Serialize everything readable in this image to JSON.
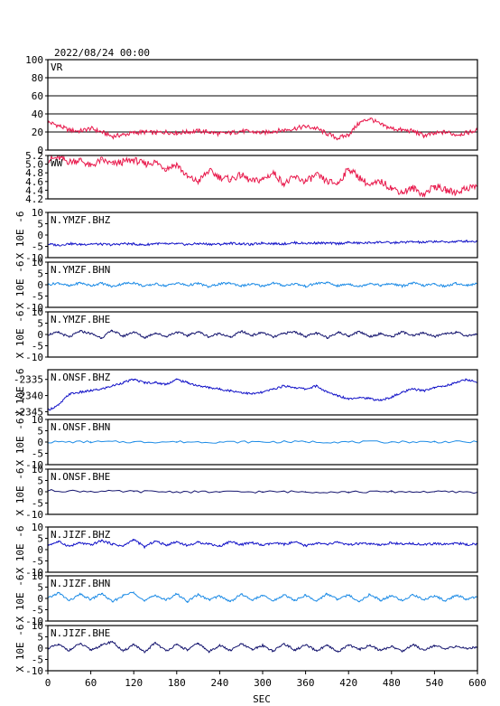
{
  "header": {
    "timestamp": "2022/08/24 00:00"
  },
  "x_axis": {
    "label": "SEC",
    "range": [
      0,
      600
    ],
    "ticks": [
      "0",
      "60",
      "120",
      "180",
      "240",
      "300",
      "360",
      "420",
      "480",
      "540",
      "600"
    ]
  },
  "colors": {
    "red": "#e8174a",
    "blue": "#1414c8",
    "lightblue": "#1e8ce6",
    "navy": "#14146e",
    "black": "#000000"
  },
  "chart_data": [
    {
      "type": "line",
      "title": "VR",
      "color": "#e8174a",
      "ylabel": "",
      "ylim": [
        0,
        100
      ],
      "yticks": [
        "0",
        "20",
        "40",
        "60",
        "80",
        "100"
      ],
      "grid": true,
      "x": [
        0,
        15,
        30,
        45,
        60,
        75,
        90,
        105,
        120,
        135,
        150,
        165,
        180,
        195,
        210,
        225,
        240,
        255,
        270,
        285,
        300,
        315,
        330,
        345,
        360,
        375,
        390,
        405,
        420,
        435,
        450,
        465,
        480,
        495,
        510,
        525,
        540,
        555,
        570,
        585,
        600
      ],
      "values": [
        31,
        27,
        22,
        21,
        24,
        20,
        15,
        17,
        19,
        20,
        19,
        20,
        19,
        20,
        21,
        20,
        18,
        19,
        21,
        20,
        19,
        21,
        22,
        24,
        26,
        24,
        18,
        13,
        17,
        30,
        35,
        28,
        24,
        22,
        21,
        16,
        18,
        20,
        17,
        19,
        22
      ]
    },
    {
      "type": "line",
      "title": "WW",
      "color": "#e8174a",
      "ylabel": "",
      "ylim": [
        4.2,
        5.2
      ],
      "yticks": [
        "4.2",
        "4.4",
        "4.6",
        "4.8",
        "5.0",
        "5.2"
      ],
      "grid": false,
      "x": [
        0,
        15,
        30,
        45,
        60,
        75,
        90,
        105,
        120,
        135,
        150,
        165,
        180,
        195,
        210,
        225,
        240,
        255,
        270,
        285,
        300,
        315,
        330,
        345,
        360,
        375,
        390,
        405,
        420,
        435,
        450,
        465,
        480,
        495,
        510,
        525,
        540,
        555,
        570,
        585,
        600
      ],
      "values": [
        5.1,
        5.15,
        5.05,
        5.1,
        4.95,
        5.1,
        5.0,
        5.05,
        5.1,
        5.0,
        5.05,
        4.9,
        5.0,
        4.7,
        4.6,
        4.85,
        4.7,
        4.65,
        4.75,
        4.6,
        4.65,
        4.8,
        4.55,
        4.7,
        4.6,
        4.75,
        4.6,
        4.55,
        4.9,
        4.7,
        4.5,
        4.6,
        4.45,
        4.35,
        4.45,
        4.3,
        4.5,
        4.4,
        4.35,
        4.45,
        4.5
      ]
    },
    {
      "type": "line",
      "title": "N.YMZF.BHZ",
      "color": "#1414c8",
      "ylabel": "X 10E -6",
      "ylim": [
        -10,
        10
      ],
      "yticks": [
        "-10",
        "-5",
        "0",
        "5",
        "10"
      ],
      "grid": false,
      "x": [
        0,
        15,
        30,
        45,
        60,
        75,
        90,
        105,
        120,
        135,
        150,
        165,
        180,
        195,
        210,
        225,
        240,
        255,
        270,
        285,
        300,
        315,
        330,
        345,
        360,
        375,
        390,
        405,
        420,
        435,
        450,
        465,
        480,
        495,
        510,
        525,
        540,
        555,
        570,
        585,
        600
      ],
      "values": [
        -4,
        -4.5,
        -3.8,
        -4.2,
        -3.9,
        -4.1,
        -4.3,
        -3.8,
        -4,
        -4.4,
        -3.7,
        -4,
        -3.9,
        -4.2,
        -3.8,
        -4,
        -4.1,
        -3.6,
        -3.9,
        -4.2,
        -3.5,
        -3.8,
        -3.9,
        -3.4,
        -3.7,
        -3.5,
        -3.6,
        -3.8,
        -3.3,
        -3.6,
        -3.4,
        -3.1,
        -3.5,
        -3.2,
        -3.0,
        -3.3,
        -2.8,
        -3.1,
        -2.9,
        -2.7,
        -2.9
      ]
    },
    {
      "type": "line",
      "title": "N.YMZF.BHN",
      "color": "#1e8ce6",
      "ylabel": "X 10E -6",
      "ylim": [
        -10,
        10
      ],
      "yticks": [
        "-10",
        "-5",
        "0",
        "5",
        "10"
      ],
      "grid": false,
      "x": [
        0,
        15,
        30,
        45,
        60,
        75,
        90,
        105,
        120,
        135,
        150,
        165,
        180,
        195,
        210,
        225,
        240,
        255,
        270,
        285,
        300,
        315,
        330,
        345,
        360,
        375,
        390,
        405,
        420,
        435,
        450,
        465,
        480,
        495,
        510,
        525,
        540,
        555,
        570,
        585,
        600
      ],
      "values": [
        0,
        0.8,
        -0.6,
        0.9,
        -0.4,
        0.7,
        -0.8,
        0.5,
        0.9,
        -0.7,
        0.4,
        -0.5,
        0.8,
        -0.3,
        0.6,
        -0.9,
        0.4,
        0.7,
        -0.5,
        0.3,
        -0.6,
        0.8,
        -0.4,
        0.5,
        -0.7,
        0.6,
        0.9,
        -0.5,
        0.4,
        -0.8,
        0.7,
        -0.3,
        0.5,
        -0.6,
        0.8,
        -0.4,
        0.3,
        -0.7,
        0.6,
        -0.2,
        0.4
      ]
    },
    {
      "type": "line",
      "title": "N.YMZF.BHE",
      "color": "#14146e",
      "ylabel": "X 10E -6",
      "ylim": [
        -10,
        10
      ],
      "yticks": [
        "-10",
        "-5",
        "0",
        "5",
        "10"
      ],
      "grid": false,
      "x": [
        0,
        15,
        30,
        45,
        60,
        75,
        90,
        105,
        120,
        135,
        150,
        165,
        180,
        195,
        210,
        225,
        240,
        255,
        270,
        285,
        300,
        315,
        330,
        345,
        360,
        375,
        390,
        405,
        420,
        435,
        450,
        465,
        480,
        495,
        510,
        525,
        540,
        555,
        570,
        585,
        600
      ],
      "values": [
        0,
        0.9,
        -1.2,
        1.5,
        0.4,
        -1.5,
        1.8,
        -0.8,
        1.2,
        -1.4,
        0.7,
        -0.9,
        1.1,
        -0.5,
        1.3,
        -1.1,
        0.6,
        -1.3,
        1.4,
        -0.4,
        0.9,
        -1.2,
        0.5,
        1.2,
        -0.8,
        0.6,
        -1.4,
        1.0,
        -0.6,
        1.3,
        -0.9,
        0.4,
        -1.1,
        1.2,
        -0.7,
        0.8,
        -1.0,
        0.5,
        0.9,
        -0.6,
        0.3
      ]
    },
    {
      "type": "line",
      "title": "N.ONSF.BHZ",
      "color": "#1414c8",
      "ylabel": "X 10E -6",
      "ylim": [
        -2346,
        -2332
      ],
      "yticks": [
        "-2345",
        "-2340",
        "-2335"
      ],
      "grid": false,
      "x": [
        0,
        15,
        30,
        45,
        60,
        75,
        90,
        105,
        120,
        135,
        150,
        165,
        180,
        195,
        210,
        225,
        240,
        255,
        270,
        285,
        300,
        315,
        330,
        345,
        360,
        375,
        390,
        405,
        420,
        435,
        450,
        465,
        480,
        495,
        510,
        525,
        540,
        555,
        570,
        585,
        600
      ],
      "values": [
        -2344.5,
        -2343,
        -2339.5,
        -2339,
        -2338.5,
        -2338,
        -2337,
        -2336,
        -2335,
        -2336,
        -2336,
        -2336.5,
        -2335,
        -2336,
        -2337,
        -2337.5,
        -2338,
        -2338.5,
        -2339,
        -2339.5,
        -2339,
        -2338,
        -2337,
        -2337.5,
        -2338,
        -2337,
        -2339,
        -2340,
        -2341,
        -2340.5,
        -2341,
        -2341.5,
        -2340.5,
        -2339,
        -2338,
        -2338.5,
        -2337.5,
        -2337,
        -2336,
        -2335,
        -2336
      ]
    },
    {
      "type": "line",
      "title": "N.ONSF.BHN",
      "color": "#1e8ce6",
      "ylabel": "X 10E -6",
      "ylim": [
        -10,
        10
      ],
      "yticks": [
        "-10",
        "-5",
        "0",
        "5",
        "10"
      ],
      "grid": false,
      "x": [
        0,
        60,
        120,
        180,
        240,
        300,
        360,
        420,
        480,
        540,
        600
      ],
      "values": [
        0,
        0.1,
        0.05,
        0.1,
        0,
        0.05,
        0.1,
        0,
        0.05,
        0.1,
        0
      ]
    },
    {
      "type": "line",
      "title": "N.ONSF.BHE",
      "color": "#14146e",
      "ylabel": "X 10E -6",
      "ylim": [
        -10,
        10
      ],
      "yticks": [
        "-10",
        "-5",
        "0",
        "5",
        "10"
      ],
      "grid": false,
      "x": [
        0,
        60,
        120,
        180,
        240,
        300,
        360,
        420,
        480,
        540,
        600
      ],
      "values": [
        0.5,
        0.2,
        0.1,
        0,
        -0.1,
        0,
        0,
        -0.1,
        0,
        0,
        -0.2
      ]
    },
    {
      "type": "line",
      "title": "N.JIZF.BHZ",
      "color": "#1414c8",
      "ylabel": "X 10E -6",
      "ylim": [
        -10,
        10
      ],
      "yticks": [
        "-10",
        "-5",
        "0",
        "5",
        "10"
      ],
      "grid": false,
      "x": [
        0,
        15,
        30,
        45,
        60,
        75,
        90,
        105,
        120,
        135,
        150,
        165,
        180,
        195,
        210,
        225,
        240,
        255,
        270,
        285,
        300,
        315,
        330,
        345,
        360,
        375,
        390,
        405,
        420,
        435,
        450,
        465,
        480,
        495,
        510,
        525,
        540,
        555,
        570,
        585,
        600
      ],
      "values": [
        2,
        3.5,
        1.5,
        3,
        2,
        4,
        2.5,
        1.5,
        4.5,
        1.2,
        3.8,
        2,
        3.5,
        1.8,
        3.2,
        2.6,
        1.5,
        3.6,
        2.2,
        3.1,
        1.9,
        2.8,
        2.4,
        3.3,
        1.7,
        2.9,
        2.2,
        3.4,
        2,
        2.7,
        2.5,
        1.9,
        3.1,
        2.3,
        2.8,
        2.1,
        2.6,
        2.4,
        2.9,
        2.2,
        2.5
      ]
    },
    {
      "type": "line",
      "title": "N.JIZF.BHN",
      "color": "#1e8ce6",
      "ylabel": "X 10E -6",
      "ylim": [
        -10,
        10
      ],
      "yticks": [
        "-10",
        "-5",
        "0",
        "5",
        "10"
      ],
      "grid": false,
      "x": [
        0,
        15,
        30,
        45,
        60,
        75,
        90,
        105,
        120,
        135,
        150,
        165,
        180,
        195,
        210,
        225,
        240,
        255,
        270,
        285,
        300,
        315,
        330,
        345,
        360,
        375,
        390,
        405,
        420,
        435,
        450,
        465,
        480,
        495,
        510,
        525,
        540,
        555,
        570,
        585,
        600
      ],
      "values": [
        0,
        2.5,
        -1,
        1.8,
        -0.5,
        2.2,
        -1.5,
        1.2,
        2.8,
        -1.2,
        1.5,
        -0.8,
        2,
        -1.3,
        1.7,
        -0.6,
        1.1,
        -1.4,
        1.9,
        -0.7,
        1.3,
        -1.1,
        1.6,
        -0.9,
        1.4,
        -1.2,
        2.1,
        -0.5,
        1.5,
        -1.3,
        1.8,
        -0.8,
        1.2,
        -1,
        1.7,
        -0.6,
        1.3,
        -1.1,
        1.5,
        -0.4,
        0.8
      ]
    },
    {
      "type": "line",
      "title": "N.JIZF.BHE",
      "color": "#14146e",
      "ylabel": "X 10E -6",
      "ylim": [
        -10,
        10
      ],
      "yticks": [
        "-10",
        "-5",
        "0",
        "5",
        "10"
      ],
      "grid": false,
      "x": [
        0,
        15,
        30,
        45,
        60,
        75,
        90,
        105,
        120,
        135,
        150,
        165,
        180,
        195,
        210,
        225,
        240,
        255,
        270,
        285,
        300,
        315,
        330,
        345,
        360,
        375,
        390,
        405,
        420,
        435,
        450,
        465,
        480,
        495,
        510,
        525,
        540,
        555,
        570,
        585,
        600
      ],
      "values": [
        0,
        1.5,
        -1,
        2,
        -0.8,
        1.2,
        3,
        -1.5,
        1.8,
        -2,
        2.5,
        -1.2,
        1.5,
        -0.8,
        2.2,
        -1.6,
        1.3,
        -1.1,
        1.9,
        -0.7,
        1.2,
        -1.3,
        2,
        -0.9,
        1.4,
        -1.2,
        1.1,
        -1.7,
        1.5,
        -0.6,
        1.3,
        -1.1,
        0.9,
        -1.4,
        1.6,
        -0.8,
        1.2,
        -0.5,
        0.9,
        -0.3,
        0.6
      ]
    }
  ]
}
